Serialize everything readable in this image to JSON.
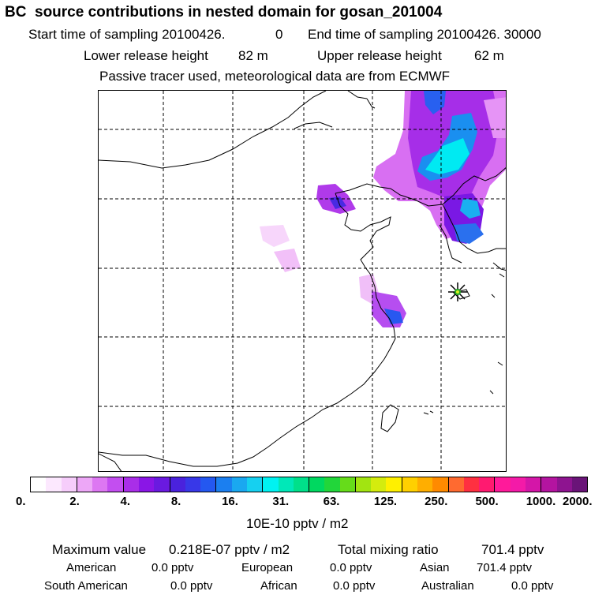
{
  "header": {
    "title": "BC  source contributions in nested domain for gosan_201004",
    "start_label": "Start time of sampling 20100426.",
    "start_value": "0",
    "end_label": "End time of sampling 20100426. 30000",
    "lower_label": "Lower release height",
    "lower_value": "82 m",
    "upper_label": "Upper release height",
    "upper_value": "62 m",
    "tracer_note": "Passive tracer used, meteorological data are from ECMWF"
  },
  "map": {
    "receptor_marker": "receptor-star-icon",
    "colors": {
      "water": "#ffffff",
      "coast": "#000000",
      "grid": "#000000",
      "marker": "#22aa22"
    }
  },
  "colorbar": {
    "colors": [
      "#ffffff",
      "#fce8fe",
      "#f6cdfb",
      "#eda7f7",
      "#dd77f2",
      "#c34ef0",
      "#a92ee8",
      "#8a16e6",
      "#6a1ae0",
      "#4a22dd",
      "#3838e8",
      "#2458f0",
      "#1b7ff0",
      "#1aa8f0",
      "#16d0f0",
      "#00f2f2",
      "#00e8b8",
      "#00e08a",
      "#00d860",
      "#22d63a",
      "#66dc1a",
      "#a2e411",
      "#d4ec0e",
      "#fff000",
      "#ffd000",
      "#ffae00",
      "#ff8a00",
      "#ff6a30",
      "#ff3040",
      "#ff1a70",
      "#ff1a9a",
      "#f41aa8",
      "#d416a8",
      "#b414a0",
      "#8e1490",
      "#6a1478"
    ],
    "tick_labels": [
      "0.",
      "2.",
      "4.",
      "8.",
      "16.",
      "31.",
      "63.",
      "125.",
      "250.",
      "500.",
      "1000.",
      "2000."
    ],
    "unit": "10E-10 pptv / m2"
  },
  "summary": {
    "max_label": "Maximum value",
    "max_value": "0.218E-07 pptv / m2",
    "total_label": "Total mixing ratio",
    "total_value": "701.4 pptv",
    "regions": [
      {
        "name": "American",
        "value": "0.0 pptv"
      },
      {
        "name": "European",
        "value": "0.0 pptv"
      },
      {
        "name": "Asian",
        "value": "701.4 pptv"
      },
      {
        "name": "South American",
        "value": "0.0 pptv"
      },
      {
        "name": "African",
        "value": "0.0 pptv"
      },
      {
        "name": "Australian",
        "value": "0.0 pptv"
      }
    ]
  }
}
